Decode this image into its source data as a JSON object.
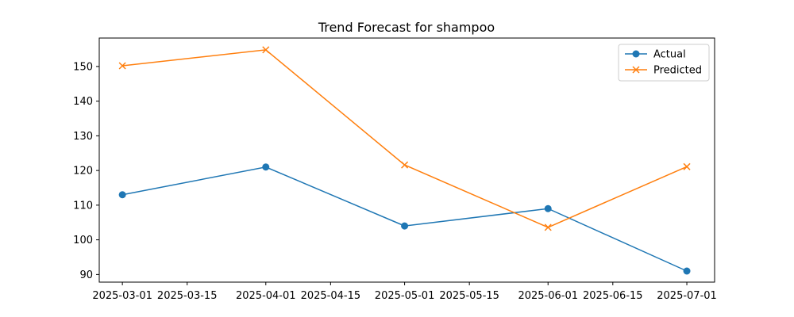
{
  "chart_data": {
    "type": "line",
    "title": "Trend Forecast for shampoo",
    "xlabel": "",
    "ylabel": "",
    "x": [
      "2025-03-01",
      "2025-04-01",
      "2025-05-01",
      "2025-06-01",
      "2025-07-01"
    ],
    "x_ticks": [
      "2025-03-01",
      "2025-03-15",
      "2025-04-01",
      "2025-04-15",
      "2025-05-01",
      "2025-05-15",
      "2025-06-01",
      "2025-06-15",
      "2025-07-01"
    ],
    "y_ticks": [
      90,
      100,
      110,
      120,
      130,
      140,
      150
    ],
    "ylim": [
      87.8,
      158.2
    ],
    "xlim": [
      "2025-02-24",
      "2025-07-07"
    ],
    "grid": false,
    "legend_position": "top-right",
    "series": [
      {
        "name": "Actual",
        "marker": "circle",
        "color": "#1f77b4",
        "values": [
          113,
          121,
          104,
          109,
          91
        ]
      },
      {
        "name": "Predicted",
        "marker": "x",
        "color": "#ff7f0e",
        "values": [
          150.2,
          154.8,
          121.6,
          103.6,
          121.1
        ]
      }
    ]
  }
}
